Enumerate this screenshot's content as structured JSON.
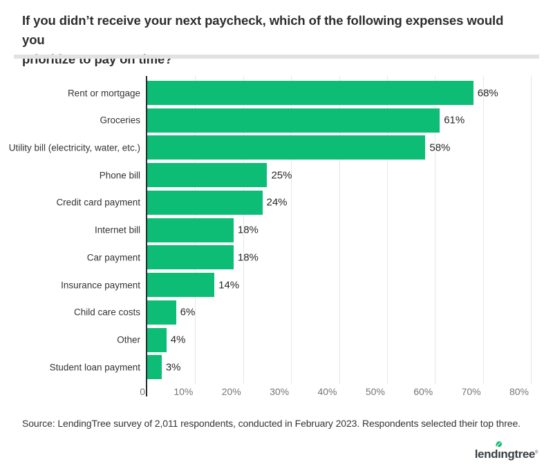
{
  "title": {
    "text": "If you didn’t receive your next paycheck, which of the following expenses would you prioritize to pay on time?",
    "line1": "If you didn’t receive your next paycheck, which of the following expenses would you",
    "line2": "prioritize to pay on time?"
  },
  "chart_data": {
    "type": "bar",
    "orientation": "horizontal",
    "categories": [
      "Rent or mortgage",
      "Groceries",
      "Utility bill (electricity, water, etc.)",
      "Phone bill",
      "Credit card payment",
      "Internet bill",
      "Car payment",
      "Insurance payment",
      "Child care costs",
      "Other",
      "Student loan payment"
    ],
    "values": [
      68,
      61,
      58,
      25,
      24,
      18,
      18,
      14,
      6,
      4,
      3
    ],
    "value_labels": [
      "68%",
      "61%",
      "58%",
      "25%",
      "24%",
      "18%",
      "18%",
      "14%",
      "6%",
      "4%",
      "3%"
    ],
    "x_ticks": [
      {
        "value": 0,
        "label": "0"
      },
      {
        "value": 10,
        "label": "10%"
      },
      {
        "value": 20,
        "label": "20%"
      },
      {
        "value": 30,
        "label": "30%"
      },
      {
        "value": 40,
        "label": "40%"
      },
      {
        "value": 50,
        "label": "50%"
      },
      {
        "value": 60,
        "label": "60%"
      },
      {
        "value": 70,
        "label": "70%"
      },
      {
        "value": 80,
        "label": "80%"
      }
    ],
    "xlim": [
      0,
      80
    ],
    "grid": true,
    "legend": "none",
    "bar_color": "#0dbd75",
    "axis_color": "#2a2a2a",
    "gridline_color": "#e6e6e6",
    "category_label_color": "#333333",
    "value_label_color": "#262626",
    "tick_label_color": "#757575"
  },
  "source": {
    "text": "Source: LendingTree survey of 2,011 respondents, conducted in February 2023. Respondents selected their top three."
  },
  "brand": {
    "name": "lendingtree",
    "wordmark_part1": "lend",
    "wordmark_i": "ı",
    "wordmark_part2": "ngtree",
    "registered_mark": "®",
    "leaf_color": "#0dbd75",
    "text_color": "#3a4046"
  }
}
